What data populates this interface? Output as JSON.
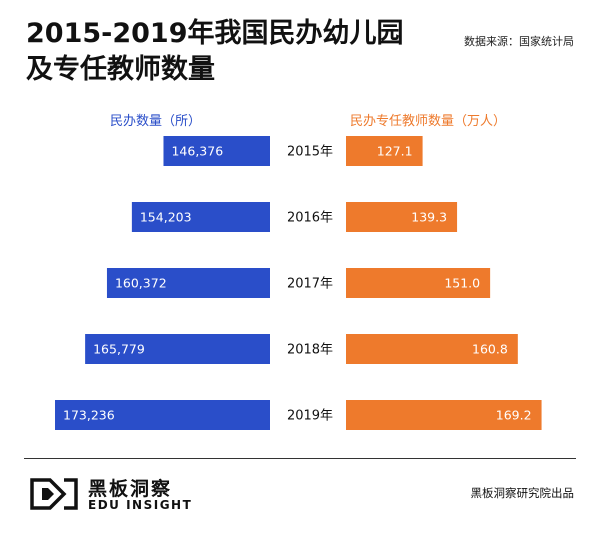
{
  "header": {
    "title_line1": "2015-2019年我国民办幼儿园",
    "title_line2": "及专任教师数量",
    "source": "数据来源：国家统计局"
  },
  "chart_data": {
    "type": "bar",
    "layout": "back-to-back horizontal",
    "categories": [
      "2015年",
      "2016年",
      "2017年",
      "2018年",
      "2019年"
    ],
    "series": [
      {
        "name": "民办数量（所）",
        "values": [
          146376,
          154203,
          160372,
          165779,
          173236
        ],
        "labels": [
          "146,376",
          "154,203",
          "160,372",
          "165,779",
          "173,236"
        ],
        "color": "#2a4ec9",
        "side": "left",
        "baseline": 120000
      },
      {
        "name": "民办专任教师数量（万人）",
        "values": [
          127.1,
          139.3,
          151.0,
          160.8,
          169.2
        ],
        "labels": [
          "127.1",
          "139.3",
          "151.0",
          "160.8",
          "169.2"
        ],
        "color": "#ee7a2c",
        "side": "right",
        "baseline": 100
      }
    ]
  },
  "footer": {
    "brand_cn": "黑板洞察",
    "brand_en": "EDU INSIGHT",
    "credit": "黑板洞察研究院出品"
  }
}
